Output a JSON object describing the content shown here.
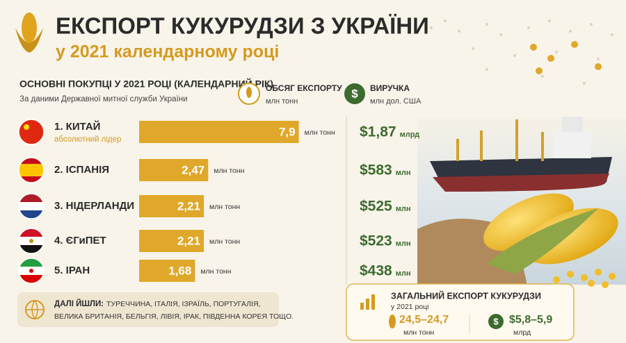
{
  "header": {
    "title": "ЕКСПОРТ КУКУРУДЗИ З УКРАЇНИ",
    "subtitle": "у 2021 календарному році"
  },
  "section": {
    "title": "ОСНОВНІ ПОКУПЦІ  У 2021 РОЦІ (КАЛЕНДАРНИЙ РІК)",
    "source": "За даними Державної митної служби України"
  },
  "legend": {
    "volume": {
      "title": "ОБСЯГ ЕКСПОРТУ",
      "unit": "млн тонн"
    },
    "revenue": {
      "title": "ВИРУЧКА",
      "unit": "млн дол. США"
    }
  },
  "buyers": [
    {
      "name": "1. КИТАЙ",
      "note": "абсолютний лідер",
      "volume": {
        "value": 7.9,
        "label": "7,9"
      },
      "volume_unit": "млн тонн",
      "revenue": "$1,87",
      "revenue_unit": "млрд"
    },
    {
      "name": "2. ІСПАНІЯ",
      "volume": {
        "value": 2.47,
        "label": "2,47"
      },
      "volume_unit": "млн тонн",
      "revenue": "$583",
      "revenue_unit": "млн"
    },
    {
      "name": "3. НІДЕРЛАНДИ",
      "volume": {
        "value": 2.21,
        "label": "2,21"
      },
      "volume_unit": "млн тонн",
      "revenue": "$525",
      "revenue_unit": "млн"
    },
    {
      "name": "4. ЄГиПЕТ",
      "volume": {
        "value": 2.21,
        "label": "2,21"
      },
      "volume_unit": "млн тонн",
      "revenue": "$523",
      "revenue_unit": "млн"
    },
    {
      "name": "5. ІРАН",
      "volume": {
        "value": 1.68,
        "label": "1,68"
      },
      "volume_unit": "млн тонн",
      "revenue": "$438",
      "revenue_unit": "млн"
    }
  ],
  "others": {
    "label": "ДАЛІ ЙШЛИ:",
    "lines": [
      "ТУРЕЧЧИНА, ІТАЛІЯ, ІЗРАЇЛЬ, ПОРТУГАЛІЯ,",
      "ВЕЛИКА БРИТАНІЯ, БЕЛЬГІЯ, ЛІВІЯ, ІРАК, ПІВДЕННА КОРЕЯ ТОЩО."
    ]
  },
  "total": {
    "title": "ЗАГАЛЬНИЙ ЕКСПОРТ КУКУРУДЗИ",
    "subtitle": "у 2021 році",
    "volume": "24,5–24,7",
    "volume_unit": "млн тонн",
    "revenue": "$5,8–5,9",
    "revenue_unit": "млрд"
  }
}
